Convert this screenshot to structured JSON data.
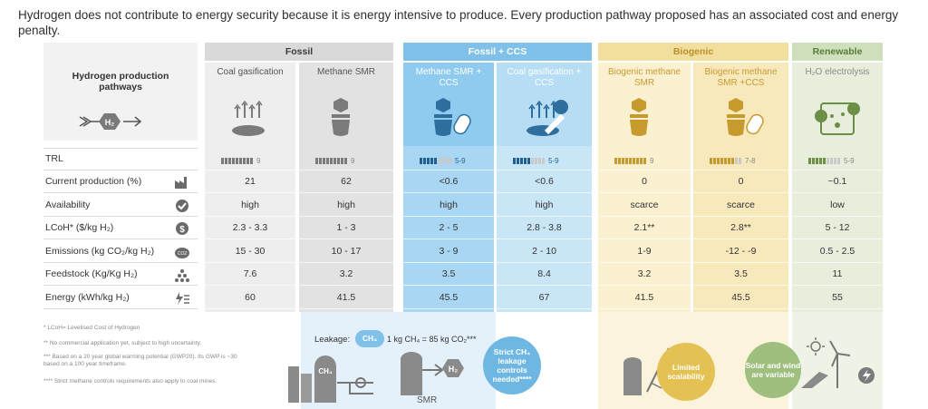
{
  "headline": "Hydrogen does not contribute to energy security because it is energy intensive to produce. Every production pathway proposed has an associated cost and energy penalty.",
  "pathways_label": "Hydrogen production pathways",
  "h2_symbol": "H₂",
  "groups": [
    {
      "name": "Fossil",
      "color": "#d9d9d9",
      "text_color": "#3b3b3b"
    },
    {
      "name": "Fossil + CCS",
      "color": "#7fc1e8",
      "text_color": "#ffffff"
    },
    {
      "name": "Biogenic",
      "color": "#f3df9d",
      "text_color": "#b8902c"
    },
    {
      "name": "Renewable",
      "color": "#cfe0bc",
      "text_color": "#5b7a3a"
    }
  ],
  "columns": [
    {
      "name": "Coal gasification",
      "group": 0,
      "icon_label": "",
      "trl": "9",
      "trl_filled": 9,
      "values": [
        "21",
        "high",
        "2.3 - 3.3",
        "15 - 30",
        "7.6",
        "60"
      ]
    },
    {
      "name": "Methane SMR",
      "group": 0,
      "icon_label": "CH₄",
      "trl": "9",
      "trl_filled": 9,
      "values": [
        "62",
        "high",
        "1 - 3",
        "10 - 17",
        "3.2",
        "41.5"
      ]
    },
    {
      "name": "Methane SMR + CCS",
      "group": 1,
      "icon_label": "CH₄",
      "trl": "5-9",
      "trl_filled": 5,
      "values": [
        "<0.6",
        "high",
        "2 - 5",
        "3 - 9",
        "3.5",
        "45.5"
      ]
    },
    {
      "name": "Coal gasification + CCS",
      "group": 1,
      "icon_label": "CO₂",
      "trl": "5-9",
      "trl_filled": 5,
      "values": [
        "<0.6",
        "high",
        "2.8 - 3.8",
        "2 - 10",
        "8.4",
        "67"
      ]
    },
    {
      "name": "Biogenic methane SMR",
      "group": 2,
      "icon_label": "CH₄",
      "trl": "9",
      "trl_filled": 9,
      "values": [
        "0",
        "scarce",
        "2.1**",
        "1-9",
        "3.2",
        "41.5"
      ]
    },
    {
      "name": "Biogenic methane SMR +CCS",
      "group": 2,
      "icon_label": "CH₄",
      "trl": "7-8",
      "trl_filled": 7,
      "values": [
        "0",
        "scarce",
        "2.8**",
        "-12 - -9",
        "3.5",
        "45.5"
      ]
    },
    {
      "name": "H₂O electrolysis",
      "group": 3,
      "icon_label": "H",
      "trl": "5-9",
      "trl_filled": 5,
      "values": [
        "~0.1",
        "low",
        "5 - 12",
        "0.5 - 2.5",
        "11",
        "55"
      ]
    }
  ],
  "rows": [
    {
      "label": "TRL",
      "icon": "none"
    },
    {
      "label": "Current production (%)",
      "icon": "factory-icon"
    },
    {
      "label": "Availability",
      "icon": "check-badge-icon"
    },
    {
      "label": "LCoH* ($/kg H₂)",
      "icon": "dollar-coin-icon"
    },
    {
      "label": "Emissions (kg CO₂/kg H₂)",
      "icon": "co2-cloud-icon"
    },
    {
      "label": "Feedstock (Kg/Kg H₂)",
      "icon": "pile-icon"
    },
    {
      "label": "Energy (kWh/kg H₂)",
      "icon": "energy-bolt-icon"
    }
  ],
  "footnotes": [
    "* LCoH= Levelised Cost of Hydrogen",
    "** No commercial application yet, subject to high uncertainty.",
    "*** Based on a 20 year global warming potential (GWP20). Its GWP is ~30 based on a 100 year timeframe.",
    "**** Strict methane controls requirements also apply to coal mines."
  ],
  "leakage": {
    "label": "Leakage:",
    "badge": "CH₄",
    "equation": "1 kg CH₄ = 85 kg CO₂***",
    "smr_label": "SMR",
    "plant_ch4": "CH₄",
    "plant_h2": "H₂"
  },
  "circles": [
    {
      "text": "Strict CH₄ leakage controls needed****",
      "color": "#6fb7e3"
    },
    {
      "text": "Limited scalability",
      "color": "#e3c153"
    },
    {
      "text": "Solar and wind are variable",
      "color": "#9fbf7f"
    }
  ]
}
